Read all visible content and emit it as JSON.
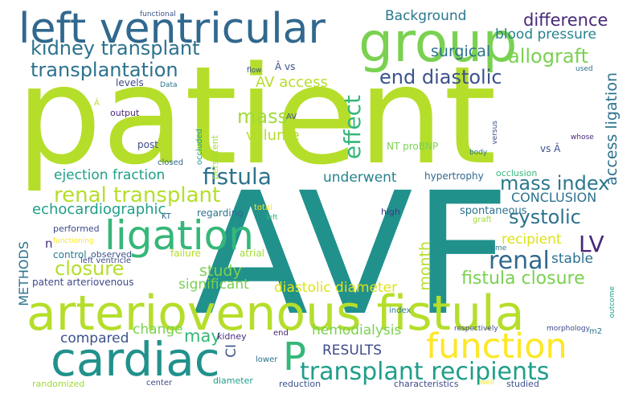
{
  "words": [
    {
      "text": "patient",
      "color": "#b5de2b"
    },
    {
      "text": "AVF",
      "color": "#21918c"
    },
    {
      "text": "arteriovenous fistula",
      "color": "#b5de2b"
    },
    {
      "text": "left ventricular",
      "color": "#31688e"
    },
    {
      "text": "group",
      "color": "#7ad151"
    },
    {
      "text": "ligation",
      "color": "#35b779"
    },
    {
      "text": "cardiac",
      "color": "#21918c"
    },
    {
      "text": "function",
      "color": "#fde725"
    },
    {
      "text": "transplant recipients",
      "color": "#1f9e89"
    },
    {
      "text": "P",
      "color": "#35b779"
    },
    {
      "text": "kidney transplant",
      "color": "#2c728e"
    },
    {
      "text": "transplantation",
      "color": "#2c728e"
    },
    {
      "text": "end diastolic",
      "color": "#3b528b"
    },
    {
      "text": "allograft",
      "color": "#7ad151"
    },
    {
      "text": "difference",
      "color": "#482878"
    },
    {
      "text": "Background",
      "color": "#2a788e"
    },
    {
      "text": "blood pressure",
      "color": "#26828e"
    },
    {
      "text": "surgical",
      "color": "#2c728e"
    },
    {
      "text": "AV access",
      "color": "#b5de2b"
    },
    {
      "text": "effect",
      "color": "#35b779"
    },
    {
      "text": "mass",
      "color": "#a0da39"
    },
    {
      "text": "volume",
      "color": "#b5de2b"
    },
    {
      "text": "fistula",
      "color": "#2c728e"
    },
    {
      "text": "renal transplant",
      "color": "#b5de2b"
    },
    {
      "text": "mass index",
      "color": "#2a788e"
    },
    {
      "text": "access ligation",
      "color": "#2c728e"
    },
    {
      "text": "ejection fraction",
      "color": "#1fa088"
    },
    {
      "text": "underwent",
      "color": "#26828e"
    },
    {
      "text": "CONCLUSION",
      "color": "#2c728e"
    },
    {
      "text": "echocardiographic",
      "color": "#1f9e89"
    },
    {
      "text": "systolic",
      "color": "#2c728e"
    },
    {
      "text": "month",
      "color": "#b5de2b"
    },
    {
      "text": "LV",
      "color": "#482878"
    },
    {
      "text": "renal",
      "color": "#31688e"
    },
    {
      "text": "recipient",
      "color": "#dde318"
    },
    {
      "text": "closure",
      "color": "#b5de2b"
    },
    {
      "text": "study",
      "color": "#7ad151"
    },
    {
      "text": "stable",
      "color": "#2c728e"
    },
    {
      "text": "fistula closure",
      "color": "#7ad151"
    },
    {
      "text": "METHODS",
      "color": "#2c728e"
    },
    {
      "text": "significant",
      "color": "#7ad151"
    },
    {
      "text": "diastolic diameter",
      "color": "#dde318"
    },
    {
      "text": "compared",
      "color": "#3b528b"
    },
    {
      "text": "change",
      "color": "#7ad151"
    },
    {
      "text": "may",
      "color": "#35b779"
    },
    {
      "text": "hemodialysis",
      "color": "#7ad151"
    },
    {
      "text": "RESULTS",
      "color": "#3e4a89"
    },
    {
      "text": "CI",
      "color": "#3b528b"
    },
    {
      "text": "hypertrophy",
      "color": "#31688e"
    },
    {
      "text": "spontaneous",
      "color": "#2c728e"
    },
    {
      "text": "NT proBNP",
      "color": "#7ad151"
    },
    {
      "text": "vs Â",
      "color": "#3b528b"
    },
    {
      "text": "occlusion",
      "color": "#35b779"
    },
    {
      "text": "graft",
      "color": "#a0da39"
    },
    {
      "text": "high",
      "color": "#443983"
    },
    {
      "text": "total",
      "color": "#fde725"
    },
    {
      "text": "left",
      "color": "#35b779"
    },
    {
      "text": "regarding",
      "color": "#2c728e"
    },
    {
      "text": "KT",
      "color": "#31688e"
    },
    {
      "text": "failure",
      "color": "#b5de2b"
    },
    {
      "text": "atrial",
      "color": "#a0da39"
    },
    {
      "text": "control",
      "color": "#2a788e"
    },
    {
      "text": "observed",
      "color": "#3b528b"
    },
    {
      "text": "performed",
      "color": "#3e4a89"
    },
    {
      "text": "functioning",
      "color": "#fde725"
    },
    {
      "text": "left ventricle",
      "color": "#3e4a89"
    },
    {
      "text": "patent arteriovenous",
      "color": "#3e4a89"
    },
    {
      "text": "post",
      "color": "#3e4a89"
    },
    {
      "text": "closed",
      "color": "#31688e"
    },
    {
      "text": "output",
      "color": "#482878"
    },
    {
      "text": "levels",
      "color": "#3e4a89"
    },
    {
      "text": "Data",
      "color": "#2a788e"
    },
    {
      "text": "Â",
      "color": "#b5de2b"
    },
    {
      "text": "AV",
      "color": "#3b528b"
    },
    {
      "text": "Â vs",
      "color": "#3b528b"
    },
    {
      "text": "flow",
      "color": "#3b528b"
    },
    {
      "text": "functional",
      "color": "#3b528b"
    },
    {
      "text": "used",
      "color": "#2c728e"
    },
    {
      "text": "versus",
      "color": "#3e4a89"
    },
    {
      "text": "body",
      "color": "#2a788e"
    },
    {
      "text": "whose",
      "color": "#482878"
    },
    {
      "text": "time",
      "color": "#2a788e"
    },
    {
      "text": "index",
      "color": "#2a788e"
    },
    {
      "text": "respectively",
      "color": "#3e4a89"
    },
    {
      "text": "morphology",
      "color": "#3e4a89"
    },
    {
      "text": "m2",
      "color": "#2a788e"
    },
    {
      "text": "outcome",
      "color": "#1f9e89"
    },
    {
      "text": "end",
      "color": "#482878"
    },
    {
      "text": "lower",
      "color": "#2c728e"
    },
    {
      "text": "kidney",
      "color": "#472d7b"
    },
    {
      "text": "reduction",
      "color": "#3b528b"
    },
    {
      "text": "characteristics",
      "color": "#3e4a89"
    },
    {
      "text": "well",
      "color": "#fde725"
    },
    {
      "text": "studied",
      "color": "#3b528b"
    },
    {
      "text": "center",
      "color": "#3e4a89"
    },
    {
      "text": "diameter",
      "color": "#1f9e89"
    },
    {
      "text": "randomized",
      "color": "#a0da39"
    },
    {
      "text": "persistent",
      "color": "#a0da39"
    },
    {
      "text": "occluded",
      "color": "#1f9e89"
    },
    {
      "text": "n",
      "color": "#472d7b"
    }
  ]
}
